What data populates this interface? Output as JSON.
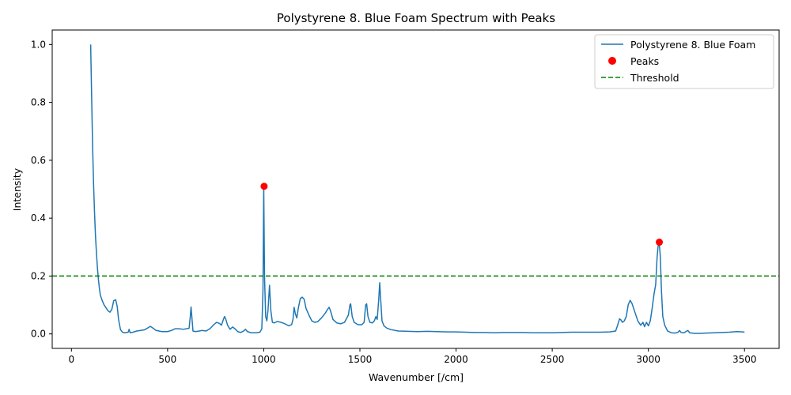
{
  "chart_data": {
    "type": "line",
    "title": "Polystyrene 8. Blue Foam Spectrum with Peaks",
    "xlabel": "Wavenumber [/cm]",
    "ylabel": "Intensity",
    "xlim": [
      -100,
      3680
    ],
    "ylim": [
      -0.05,
      1.05
    ],
    "xticks": [
      0,
      500,
      1000,
      1500,
      2000,
      2500,
      3000,
      3500
    ],
    "yticks": [
      0.0,
      0.2,
      0.4,
      0.6,
      0.8,
      1.0
    ],
    "xtick_labels": [
      "0",
      "500",
      "1000",
      "1500",
      "2000",
      "2500",
      "3000",
      "3500"
    ],
    "ytick_labels": [
      "0.0",
      "0.2",
      "0.4",
      "0.6",
      "0.8",
      "1.0"
    ],
    "grid": false,
    "legend_position": "top-right",
    "series": [
      {
        "name": "Polystyrene 8. Blue Foam",
        "color": "#1f77b4",
        "style": "solid",
        "points": [
          [
            100,
            1.0
          ],
          [
            105,
            0.82
          ],
          [
            110,
            0.65
          ],
          [
            115,
            0.52
          ],
          [
            120,
            0.42
          ],
          [
            125,
            0.34
          ],
          [
            130,
            0.28
          ],
          [
            135,
            0.23
          ],
          [
            140,
            0.19
          ],
          [
            145,
            0.16
          ],
          [
            150,
            0.135
          ],
          [
            160,
            0.115
          ],
          [
            170,
            0.1
          ],
          [
            180,
            0.09
          ],
          [
            190,
            0.08
          ],
          [
            200,
            0.075
          ],
          [
            210,
            0.085
          ],
          [
            220,
            0.115
          ],
          [
            230,
            0.118
          ],
          [
            238,
            0.095
          ],
          [
            245,
            0.05
          ],
          [
            255,
            0.015
          ],
          [
            265,
            0.006
          ],
          [
            280,
            0.004
          ],
          [
            295,
            0.006
          ],
          [
            300,
            0.016
          ],
          [
            305,
            0.004
          ],
          [
            320,
            0.006
          ],
          [
            340,
            0.01
          ],
          [
            360,
            0.012
          ],
          [
            380,
            0.014
          ],
          [
            400,
            0.022
          ],
          [
            410,
            0.026
          ],
          [
            420,
            0.022
          ],
          [
            440,
            0.012
          ],
          [
            470,
            0.008
          ],
          [
            500,
            0.008
          ],
          [
            520,
            0.012
          ],
          [
            540,
            0.018
          ],
          [
            560,
            0.018
          ],
          [
            580,
            0.016
          ],
          [
            600,
            0.018
          ],
          [
            612,
            0.02
          ],
          [
            618,
            0.06
          ],
          [
            622,
            0.093
          ],
          [
            626,
            0.06
          ],
          [
            632,
            0.01
          ],
          [
            645,
            0.008
          ],
          [
            665,
            0.01
          ],
          [
            680,
            0.012
          ],
          [
            700,
            0.01
          ],
          [
            720,
            0.018
          ],
          [
            740,
            0.032
          ],
          [
            755,
            0.04
          ],
          [
            770,
            0.036
          ],
          [
            780,
            0.03
          ],
          [
            790,
            0.05
          ],
          [
            796,
            0.06
          ],
          [
            802,
            0.052
          ],
          [
            812,
            0.03
          ],
          [
            825,
            0.016
          ],
          [
            838,
            0.024
          ],
          [
            850,
            0.018
          ],
          [
            865,
            0.008
          ],
          [
            880,
            0.005
          ],
          [
            895,
            0.01
          ],
          [
            905,
            0.016
          ],
          [
            915,
            0.008
          ],
          [
            935,
            0.004
          ],
          [
            960,
            0.004
          ],
          [
            980,
            0.006
          ],
          [
            990,
            0.018
          ],
          [
            996,
            0.15
          ],
          [
            1000,
            0.51
          ],
          [
            1004,
            0.2
          ],
          [
            1010,
            0.06
          ],
          [
            1016,
            0.045
          ],
          [
            1022,
            0.08
          ],
          [
            1030,
            0.168
          ],
          [
            1037,
            0.08
          ],
          [
            1045,
            0.04
          ],
          [
            1055,
            0.038
          ],
          [
            1070,
            0.043
          ],
          [
            1090,
            0.04
          ],
          [
            1110,
            0.035
          ],
          [
            1130,
            0.028
          ],
          [
            1145,
            0.032
          ],
          [
            1152,
            0.05
          ],
          [
            1158,
            0.092
          ],
          [
            1164,
            0.07
          ],
          [
            1172,
            0.055
          ],
          [
            1180,
            0.09
          ],
          [
            1190,
            0.122
          ],
          [
            1200,
            0.127
          ],
          [
            1210,
            0.12
          ],
          [
            1220,
            0.088
          ],
          [
            1235,
            0.065
          ],
          [
            1250,
            0.045
          ],
          [
            1265,
            0.04
          ],
          [
            1280,
            0.042
          ],
          [
            1300,
            0.055
          ],
          [
            1320,
            0.072
          ],
          [
            1332,
            0.085
          ],
          [
            1340,
            0.092
          ],
          [
            1348,
            0.078
          ],
          [
            1360,
            0.05
          ],
          [
            1380,
            0.038
          ],
          [
            1400,
            0.035
          ],
          [
            1420,
            0.04
          ],
          [
            1440,
            0.065
          ],
          [
            1448,
            0.1
          ],
          [
            1452,
            0.104
          ],
          [
            1460,
            0.06
          ],
          [
            1470,
            0.04
          ],
          [
            1490,
            0.032
          ],
          [
            1510,
            0.032
          ],
          [
            1522,
            0.04
          ],
          [
            1530,
            0.1
          ],
          [
            1535,
            0.104
          ],
          [
            1542,
            0.06
          ],
          [
            1552,
            0.04
          ],
          [
            1565,
            0.038
          ],
          [
            1575,
            0.045
          ],
          [
            1583,
            0.06
          ],
          [
            1590,
            0.05
          ],
          [
            1598,
            0.12
          ],
          [
            1603,
            0.177
          ],
          [
            1608,
            0.12
          ],
          [
            1615,
            0.045
          ],
          [
            1625,
            0.028
          ],
          [
            1640,
            0.02
          ],
          [
            1660,
            0.015
          ],
          [
            1700,
            0.01
          ],
          [
            1750,
            0.009
          ],
          [
            1800,
            0.008
          ],
          [
            1850,
            0.009
          ],
          [
            1900,
            0.008
          ],
          [
            1950,
            0.007
          ],
          [
            2000,
            0.007
          ],
          [
            2050,
            0.006
          ],
          [
            2100,
            0.005
          ],
          [
            2150,
            0.005
          ],
          [
            2200,
            0.004
          ],
          [
            2250,
            0.005
          ],
          [
            2300,
            0.005
          ],
          [
            2350,
            0.005
          ],
          [
            2400,
            0.004
          ],
          [
            2450,
            0.004
          ],
          [
            2500,
            0.004
          ],
          [
            2550,
            0.005
          ],
          [
            2600,
            0.006
          ],
          [
            2650,
            0.006
          ],
          [
            2700,
            0.006
          ],
          [
            2750,
            0.006
          ],
          [
            2800,
            0.007
          ],
          [
            2830,
            0.01
          ],
          [
            2840,
            0.03
          ],
          [
            2850,
            0.052
          ],
          [
            2858,
            0.048
          ],
          [
            2865,
            0.04
          ],
          [
            2875,
            0.045
          ],
          [
            2885,
            0.06
          ],
          [
            2895,
            0.1
          ],
          [
            2905,
            0.116
          ],
          [
            2915,
            0.105
          ],
          [
            2930,
            0.075
          ],
          [
            2945,
            0.045
          ],
          [
            2960,
            0.03
          ],
          [
            2972,
            0.04
          ],
          [
            2980,
            0.025
          ],
          [
            2990,
            0.04
          ],
          [
            3000,
            0.028
          ],
          [
            3010,
            0.045
          ],
          [
            3020,
            0.09
          ],
          [
            3030,
            0.14
          ],
          [
            3038,
            0.17
          ],
          [
            3045,
            0.26
          ],
          [
            3050,
            0.3
          ],
          [
            3056,
            0.316
          ],
          [
            3062,
            0.27
          ],
          [
            3068,
            0.15
          ],
          [
            3075,
            0.06
          ],
          [
            3085,
            0.03
          ],
          [
            3100,
            0.01
          ],
          [
            3120,
            0.004
          ],
          [
            3140,
            0.003
          ],
          [
            3155,
            0.006
          ],
          [
            3162,
            0.012
          ],
          [
            3170,
            0.005
          ],
          [
            3185,
            0.004
          ],
          [
            3195,
            0.008
          ],
          [
            3205,
            0.012
          ],
          [
            3215,
            0.004
          ],
          [
            3240,
            0.002
          ],
          [
            3270,
            0.002
          ],
          [
            3300,
            0.003
          ],
          [
            3340,
            0.004
          ],
          [
            3380,
            0.005
          ],
          [
            3420,
            0.006
          ],
          [
            3460,
            0.008
          ],
          [
            3490,
            0.007
          ],
          [
            3500,
            0.006
          ]
        ]
      },
      {
        "name": "Peaks",
        "type": "scatter",
        "color": "#ff0000",
        "points": [
          [
            1002,
            0.51
          ],
          [
            3057,
            0.317
          ]
        ]
      },
      {
        "name": "Threshold",
        "type": "hline",
        "color": "#008000",
        "style": "dashed",
        "y": 0.2
      }
    ]
  }
}
